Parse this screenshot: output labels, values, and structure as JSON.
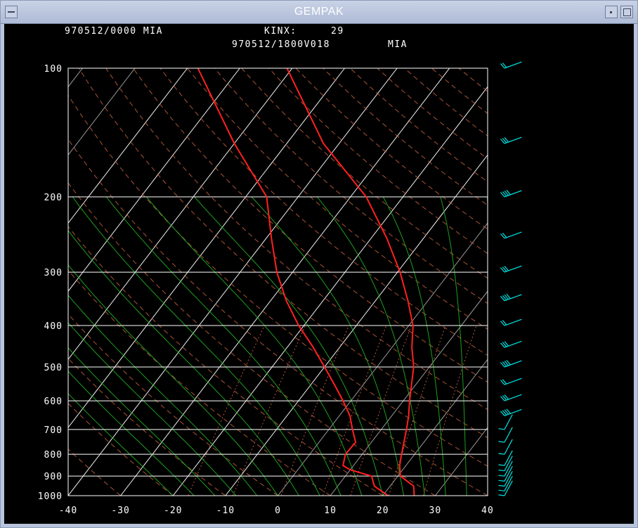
{
  "window": {
    "title": "GEMPAK"
  },
  "header": {
    "left": "970512/0000 MIA",
    "index_label": "KINX:",
    "index_value": "29",
    "valid": "970512/1800V018",
    "station": "MIA"
  },
  "colors": {
    "frame": "#ffffff",
    "isotherm": "#ffffff",
    "dry_adiabat": "#c86440",
    "mixing_ratio": "#c86440",
    "moist_adiabat": "#21b021",
    "sounding": "#ff2020",
    "wind_barb": "#00e5e5"
  },
  "chart_data": {
    "type": "skew-t",
    "x_axis": {
      "label": "",
      "ticks": [
        "-40",
        "-30",
        "-20",
        "-10",
        "0",
        "10",
        "20",
        "30",
        "40"
      ],
      "range": [
        -40,
        40
      ]
    },
    "y_axis": {
      "label": "",
      "scale": "log",
      "ticks": [
        "100",
        "200",
        "300",
        "400",
        "500",
        "600",
        "700",
        "800",
        "900",
        "1000"
      ],
      "range": [
        1000,
        100
      ]
    },
    "temperature": [
      {
        "p": 1000,
        "t": 26
      },
      {
        "p": 950,
        "t": 24.5
      },
      {
        "p": 900,
        "t": 20.5
      },
      {
        "p": 850,
        "t": 18.8
      },
      {
        "p": 800,
        "t": 17.5
      },
      {
        "p": 750,
        "t": 16.2
      },
      {
        "p": 700,
        "t": 14.8
      },
      {
        "p": 650,
        "t": 13.2
      },
      {
        "p": 600,
        "t": 11.2
      },
      {
        "p": 550,
        "t": 9.2
      },
      {
        "p": 500,
        "t": 7
      },
      {
        "p": 450,
        "t": 3.8
      },
      {
        "p": 400,
        "t": 0.8
      },
      {
        "p": 350,
        "t": -3.8
      },
      {
        "p": 300,
        "t": -9.5
      },
      {
        "p": 250,
        "t": -17
      },
      {
        "p": 200,
        "t": -27
      },
      {
        "p": 150,
        "t": -43
      },
      {
        "p": 100,
        "t": -61
      }
    ],
    "dewpoint": [
      {
        "p": 1000,
        "t": 21
      },
      {
        "p": 950,
        "t": 17
      },
      {
        "p": 900,
        "t": 15
      },
      {
        "p": 870,
        "t": 10
      },
      {
        "p": 850,
        "t": 8
      },
      {
        "p": 800,
        "t": 6.8
      },
      {
        "p": 750,
        "t": 7
      },
      {
        "p": 700,
        "t": 4.5
      },
      {
        "p": 650,
        "t": 2
      },
      {
        "p": 600,
        "t": -1.5
      },
      {
        "p": 550,
        "t": -5.5
      },
      {
        "p": 500,
        "t": -10
      },
      {
        "p": 450,
        "t": -15
      },
      {
        "p": 400,
        "t": -21
      },
      {
        "p": 350,
        "t": -27
      },
      {
        "p": 300,
        "t": -33
      },
      {
        "p": 250,
        "t": -39
      },
      {
        "p": 200,
        "t": -46
      },
      {
        "p": 150,
        "t": -60
      },
      {
        "p": 100,
        "t": -78
      }
    ],
    "wind_levels_hpa": [
      100,
      150,
      200,
      250,
      300,
      350,
      400,
      450,
      500,
      550,
      600,
      650,
      700,
      750,
      800,
      850,
      875,
      900,
      925,
      950,
      975,
      1000
    ]
  }
}
